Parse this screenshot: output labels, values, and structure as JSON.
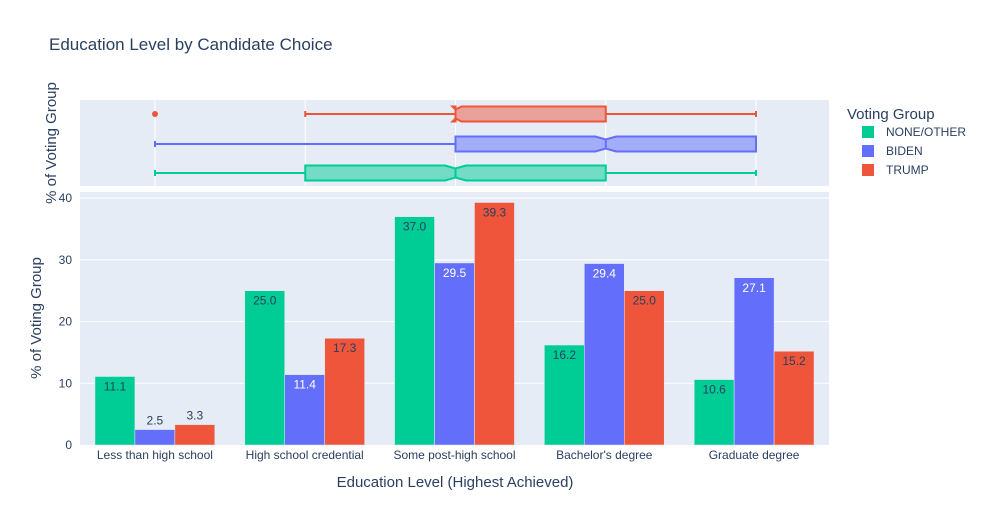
{
  "chart_data": {
    "type": "bar",
    "title": "Education Level by Candidate Choice",
    "xlabel": "Education Level (Highest Achieved)",
    "ylabel": "% of Voting Group",
    "box_ylabel": "% of Voting Group",
    "ylim": [
      0,
      41
    ],
    "yticks": [
      0,
      10,
      20,
      30,
      40
    ],
    "grid": true,
    "legend_title": "Voting Group",
    "legend_position": "right",
    "categories": [
      "Less than high school",
      "High school credential",
      "Some post-high school",
      "Bachelor's degree",
      "Graduate degree"
    ],
    "series": [
      {
        "name": "NONE/OTHER",
        "color": "#00cc96",
        "values": [
          11.1,
          25.0,
          37.0,
          16.2,
          10.6
        ],
        "labels": [
          "11.1",
          "25.0",
          "37.0",
          "16.2",
          "10.6"
        ]
      },
      {
        "name": "BIDEN",
        "color": "#636efa",
        "values": [
          2.5,
          11.4,
          29.5,
          29.4,
          27.1
        ],
        "labels": [
          "2.5",
          "11.4",
          "29.5",
          "29.4",
          "27.1"
        ]
      },
      {
        "name": "TRUMP",
        "color": "#ef553b",
        "values": [
          3.3,
          17.3,
          39.3,
          25.0,
          15.2
        ],
        "labels": [
          "3.3",
          "17.3",
          "39.3",
          "25.0",
          "15.2"
        ]
      }
    ],
    "marginal_box": {
      "type": "notched-box",
      "orientation": "horizontal",
      "axis": "education category index",
      "boxes": [
        {
          "name": "NONE/OTHER",
          "min": 0,
          "q1": 1,
          "median": 2,
          "q3": 3,
          "max": 4,
          "notch_low": 1.93,
          "notch_high": 2.07
        },
        {
          "name": "BIDEN",
          "min": 0,
          "q1": 2,
          "median": 3,
          "q3": 4,
          "max": 4,
          "notch_low": 2.93,
          "notch_high": 3.07
        },
        {
          "name": "TRUMP",
          "min": 1,
          "q1": 2,
          "median": 2,
          "q3": 3,
          "max": 4,
          "notch_low": 1.98,
          "notch_high": 2.04,
          "outliers": [
            0
          ]
        }
      ]
    }
  }
}
